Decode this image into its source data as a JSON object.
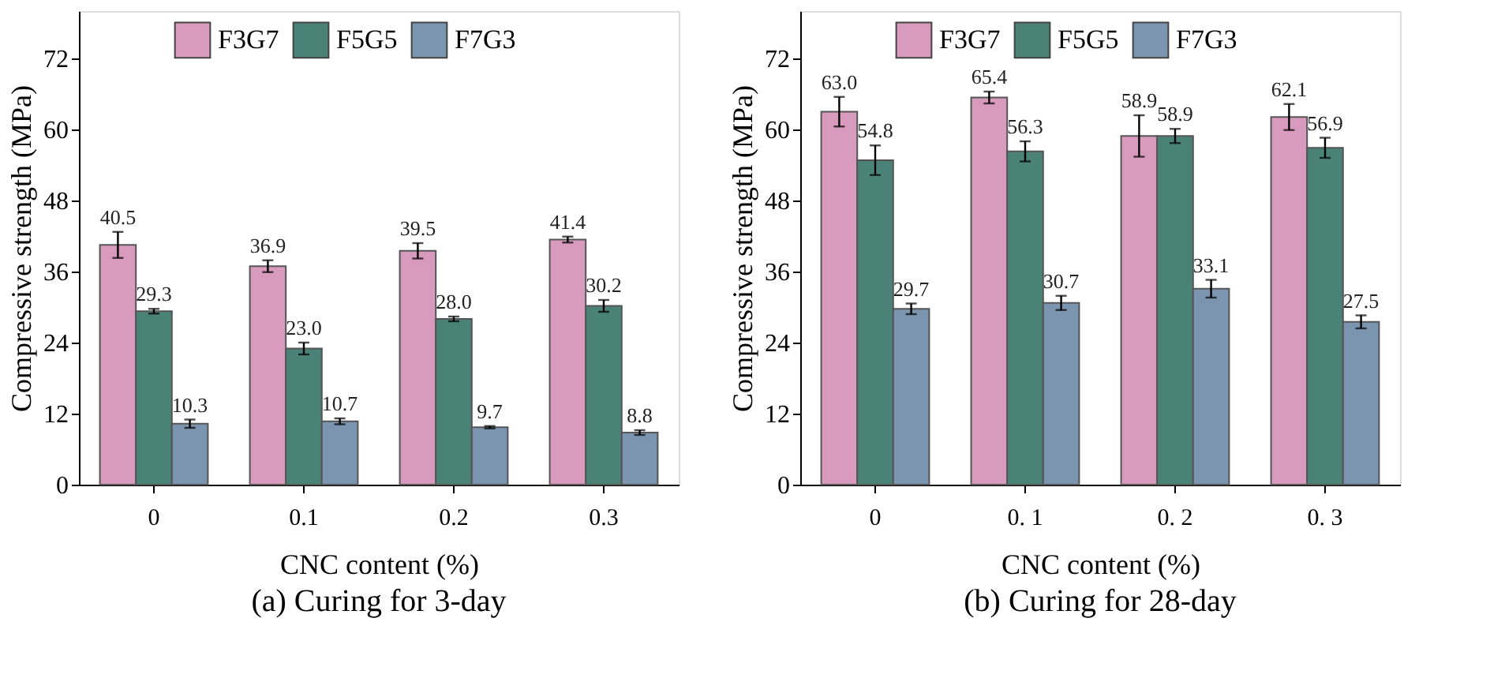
{
  "chart_data": [
    {
      "type": "bar",
      "categories": [
        "0",
        "0.1",
        "0.2",
        "0.3"
      ],
      "xlabel": "CNC content (%)",
      "ylabel": "Compressive strength (MPa)",
      "annotations": [
        "(a) Curing for 3-day"
      ],
      "ylim": [
        0,
        80
      ],
      "yticks": [
        0,
        12,
        24,
        36,
        48,
        60,
        72
      ],
      "grid": false,
      "legend": "top",
      "series": [
        {
          "name": "F3G7",
          "color": "#d89bbd",
          "values": [
            40.5,
            36.9,
            39.5,
            41.4
          ],
          "errors": [
            2.2,
            1.0,
            1.3,
            0.5
          ],
          "value_labels": [
            "40.5",
            "36.9",
            "39.5",
            "41.4"
          ]
        },
        {
          "name": "F5G5",
          "color": "#4a8277",
          "values": [
            29.3,
            23.0,
            28.0,
            30.2
          ],
          "errors": [
            0.4,
            1.0,
            0.4,
            1.0
          ],
          "value_labels": [
            "29.3",
            "23.0",
            "28.0",
            "30.2"
          ]
        },
        {
          "name": "F7G3",
          "color": "#7b95b0",
          "values": [
            10.3,
            10.7,
            9.7,
            8.8
          ],
          "errors": [
            0.7,
            0.5,
            0.2,
            0.4
          ],
          "value_labels": [
            "10.3",
            "10.7",
            "9.7",
            "8.8"
          ]
        }
      ]
    },
    {
      "type": "bar",
      "categories": [
        "0",
        "0. 1",
        "0. 2",
        "0. 3"
      ],
      "xlabel": "CNC content (%)",
      "ylabel": "Compressive strength (MPa)",
      "annotations": [
        "(b) Curing for 28-day"
      ],
      "ylim": [
        0,
        80
      ],
      "yticks": [
        0,
        12,
        24,
        36,
        48,
        60,
        72
      ],
      "grid": false,
      "legend": "top",
      "series": [
        {
          "name": "F3G7",
          "color": "#d89bbd",
          "values": [
            63.0,
            65.4,
            58.9,
            62.1
          ],
          "errors": [
            2.5,
            1.0,
            3.5,
            2.2
          ],
          "value_labels": [
            "63.0",
            "65.4",
            "58.9",
            "62.1"
          ]
        },
        {
          "name": "F5G5",
          "color": "#4a8277",
          "values": [
            54.8,
            56.3,
            58.9,
            56.9
          ],
          "errors": [
            2.5,
            1.7,
            1.2,
            1.7
          ],
          "value_labels": [
            "54.8",
            "56.3",
            "58.9",
            "56.9"
          ]
        },
        {
          "name": "F7G3",
          "color": "#7b95b0",
          "values": [
            29.7,
            30.7,
            33.1,
            27.5
          ],
          "errors": [
            0.9,
            1.2,
            1.5,
            1.1
          ],
          "value_labels": [
            "29.7",
            "30.7",
            "33.1",
            "27.5"
          ]
        }
      ]
    }
  ]
}
